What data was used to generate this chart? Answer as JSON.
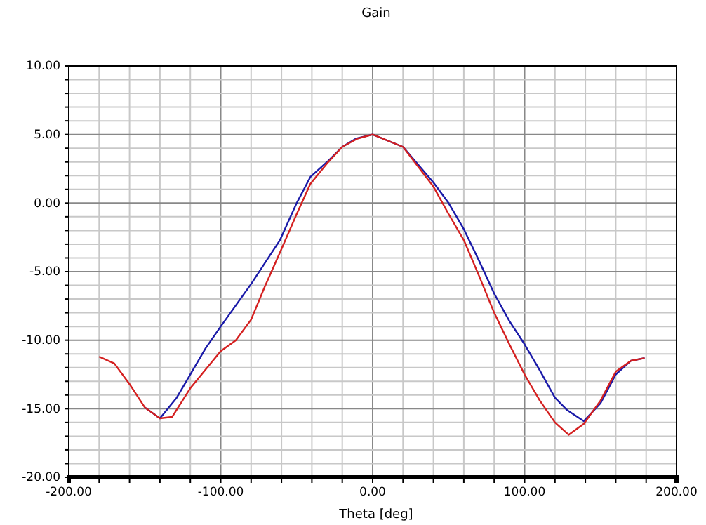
{
  "chart_data": {
    "type": "line",
    "title": "Gain",
    "xlabel": "Theta [deg]",
    "grid": true,
    "line_style": "solid",
    "xlim": [
      -200,
      200
    ],
    "ylim": [
      -20,
      10
    ],
    "xticks": [
      {
        "value": -200,
        "label": "-200.00"
      },
      {
        "value": -180,
        "label": null
      },
      {
        "value": -160,
        "label": null
      },
      {
        "value": -140,
        "label": null
      },
      {
        "value": -120,
        "label": null
      },
      {
        "value": -100,
        "label": "-100.00"
      },
      {
        "value": -80,
        "label": null
      },
      {
        "value": -60,
        "label": null
      },
      {
        "value": -40,
        "label": null
      },
      {
        "value": -20,
        "label": null
      },
      {
        "value": 0,
        "label": "0.00"
      },
      {
        "value": 20,
        "label": null
      },
      {
        "value": 40,
        "label": null
      },
      {
        "value": 60,
        "label": null
      },
      {
        "value": 80,
        "label": null
      },
      {
        "value": 100,
        "label": "100.00"
      },
      {
        "value": 120,
        "label": null
      },
      {
        "value": 140,
        "label": null
      },
      {
        "value": 160,
        "label": null
      },
      {
        "value": 180,
        "label": null
      },
      {
        "value": 200,
        "label": "200.00"
      }
    ],
    "yticks": [
      {
        "value": -20,
        "label": "-20.00"
      },
      {
        "value": -19,
        "label": null
      },
      {
        "value": -18,
        "label": null
      },
      {
        "value": -17,
        "label": null
      },
      {
        "value": -16,
        "label": null
      },
      {
        "value": -15,
        "label": "-15.00"
      },
      {
        "value": -14,
        "label": null
      },
      {
        "value": -13,
        "label": null
      },
      {
        "value": -12,
        "label": null
      },
      {
        "value": -11,
        "label": null
      },
      {
        "value": -10,
        "label": "-10.00"
      },
      {
        "value": -9,
        "label": null
      },
      {
        "value": -8,
        "label": null
      },
      {
        "value": -7,
        "label": null
      },
      {
        "value": -6,
        "label": null
      },
      {
        "value": -5,
        "label": "-5.00"
      },
      {
        "value": -4,
        "label": null
      },
      {
        "value": -3,
        "label": null
      },
      {
        "value": -2,
        "label": null
      },
      {
        "value": -1,
        "label": null
      },
      {
        "value": 0,
        "label": "0.00"
      },
      {
        "value": 1,
        "label": null
      },
      {
        "value": 2,
        "label": null
      },
      {
        "value": 3,
        "label": null
      },
      {
        "value": 4,
        "label": null
      },
      {
        "value": 5,
        "label": "5.00"
      },
      {
        "value": 6,
        "label": null
      },
      {
        "value": 7,
        "label": null
      },
      {
        "value": 8,
        "label": null
      },
      {
        "value": 9,
        "label": null
      },
      {
        "value": 10,
        "label": "10.00"
      }
    ],
    "series": [
      {
        "color": "#1a1aa8",
        "x": [
          -150,
          -140,
          -129,
          -110,
          -100,
          -80,
          -61,
          -50,
          -41,
          -30,
          -20,
          -11,
          0,
          20,
          40,
          50,
          60,
          70,
          80,
          90,
          100,
          110,
          120,
          128,
          139,
          150,
          160,
          170,
          179
        ],
        "values": [
          -14.9,
          -15.7,
          -14.2,
          -10.6,
          -9.0,
          -5.9,
          -2.7,
          0.0,
          1.9,
          3.0,
          4.1,
          4.7,
          5.0,
          4.1,
          1.5,
          0.0,
          -1.9,
          -4.2,
          -6.6,
          -8.6,
          -10.3,
          -12.2,
          -14.2,
          -15.1,
          -15.9,
          -14.6,
          -12.5,
          -11.5,
          -11.3
        ]
      },
      {
        "color": "#d42020",
        "x": [
          -180,
          -170,
          -160,
          -150,
          -140,
          -132,
          -120,
          -100,
          -90,
          -80,
          -71,
          -61,
          -50,
          -41,
          -30,
          -20,
          -10,
          0,
          20,
          40,
          50,
          60,
          70,
          80,
          90,
          100,
          110,
          120,
          129,
          139,
          150,
          160,
          170,
          179
        ],
        "values": [
          -11.2,
          -11.7,
          -13.2,
          -14.9,
          -15.7,
          -15.6,
          -13.5,
          -10.8,
          -10.0,
          -8.5,
          -6.1,
          -3.6,
          -0.8,
          1.4,
          2.9,
          4.1,
          4.7,
          5.0,
          4.1,
          1.2,
          -0.8,
          -2.7,
          -5.3,
          -8.0,
          -10.3,
          -12.5,
          -14.4,
          -16.0,
          -16.9,
          -16.1,
          -14.4,
          -12.3,
          -11.5,
          -11.3
        ]
      }
    ]
  }
}
